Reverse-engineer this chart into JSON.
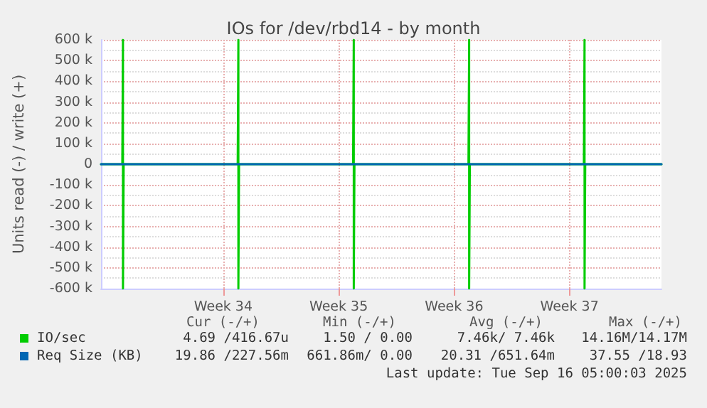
{
  "chart_data": {
    "type": "line",
    "title": "IOs for /dev/rbd14 - by month",
    "ylabel": "Units read (-) / write (+)",
    "xlim": [
      "2025-08-13T05:00",
      "2025-09-16T05:00"
    ],
    "xticks": [
      {
        "value": "2025-08-20T15:00",
        "label": "Week 34"
      },
      {
        "value": "2025-08-27T15:00",
        "label": "Week 35"
      },
      {
        "value": "2025-09-03T15:00",
        "label": "Week 36"
      },
      {
        "value": "2025-09-10T15:00",
        "label": "Week 37"
      }
    ],
    "ylim": [
      -600000,
      600000
    ],
    "yticks": [
      {
        "value": -600000,
        "label": "-600 k"
      },
      {
        "value": -500000,
        "label": "-500 k"
      },
      {
        "value": -400000,
        "label": "-400 k"
      },
      {
        "value": -300000,
        "label": "-300 k"
      },
      {
        "value": -200000,
        "label": "-200 k"
      },
      {
        "value": -100000,
        "label": "-100 k"
      },
      0,
      {
        "value": 100000,
        "label": "100 k"
      },
      {
        "value": 200000,
        "label": "200 k"
      },
      {
        "value": 300000,
        "label": "300 k"
      },
      {
        "value": 400000,
        "label": "400 k"
      },
      {
        "value": 500000,
        "label": "500 k"
      },
      {
        "value": 600000,
        "label": "600 k"
      }
    ],
    "series": [
      {
        "name": "IO/sec",
        "color": "#00cc00",
        "x": [
          "2025-08-13T05:00",
          "2025-08-14T12:00",
          "2025-08-14T13:00",
          "2025-08-14T13:00",
          "2025-08-14T14:00",
          "2025-08-21T12:00",
          "2025-08-21T13:00",
          "2025-08-21T13:00",
          "2025-08-21T14:00",
          "2025-08-28T12:00",
          "2025-08-28T13:00",
          "2025-08-28T13:00",
          "2025-08-28T14:00",
          "2025-09-04T12:00",
          "2025-09-04T13:00",
          "2025-09-04T13:00",
          "2025-09-04T14:00",
          "2025-09-11T12:00",
          "2025-09-11T13:00",
          "2025-09-11T13:00",
          "2025-09-11T14:00",
          "2025-09-16T05:00"
        ],
        "values": [
          0,
          0,
          600000,
          -600000,
          0,
          0,
          600000,
          -600000,
          0,
          0,
          600000,
          -600000,
          0,
          0,
          600000,
          -600000,
          0,
          0,
          600000,
          -600000,
          0,
          0
        ]
      },
      {
        "name": "Req Size (KB)",
        "color": "#0066b3",
        "x": [
          "2025-08-13T05:00",
          "2025-09-16T05:00"
        ],
        "values": [
          0,
          0
        ]
      }
    ],
    "annotations": [
      "Cur (-/+)",
      "Min (-/+)",
      "Avg (-/+)",
      "Max (-/+)",
      "4.69 /416.67u",
      "1.50 / 0.00",
      "7.46k/ 7.46k",
      "14.16M/14.17M",
      "19.86 /227.56m",
      "661.86m/ 0.00",
      "20.31 /651.64m",
      "37.55 /18.93",
      "Last update: Tue Sep 16 05:00:03 2025"
    ],
    "grid": true,
    "legend": "bottom",
    "marker": "none",
    "line_style": "solid"
  }
}
